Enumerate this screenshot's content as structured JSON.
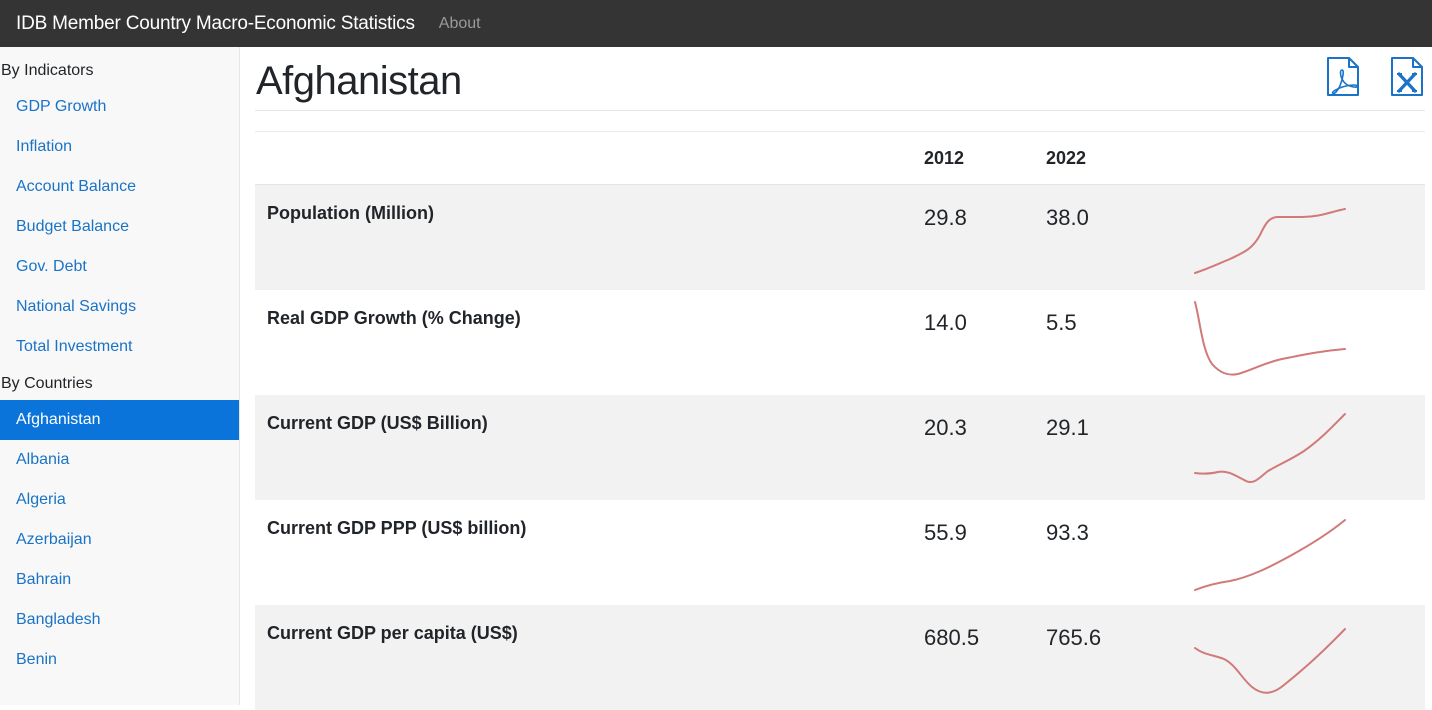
{
  "navbar": {
    "brand": "IDB Member Country Macro-Economic Statistics",
    "about": "About"
  },
  "sidebar": {
    "indicators_heading": "By Indicators",
    "indicators": [
      "GDP Growth",
      "Inflation",
      "Account Balance",
      "Budget Balance",
      "Gov. Debt",
      "National Savings",
      "Total Investment"
    ],
    "countries_heading": "By Countries",
    "countries": [
      "Afghanistan",
      "Albania",
      "Algeria",
      "Azerbaijan",
      "Bahrain",
      "Bangladesh",
      "Benin"
    ],
    "active_country": "Afghanistan"
  },
  "page": {
    "title": "Afghanistan",
    "export_icons": [
      "pdf-file-icon",
      "excel-file-icon"
    ]
  },
  "table": {
    "years": [
      "2012",
      "2022"
    ],
    "rows": [
      {
        "label": "Population (Million)",
        "v2012": "29.8",
        "v2022": "38.0"
      },
      {
        "label": "Real GDP Growth (% Change)",
        "v2012": "14.0",
        "v2022": "5.5"
      },
      {
        "label": "Current GDP (US$ Billion)",
        "v2012": "20.3",
        "v2022": "29.1"
      },
      {
        "label": "Current GDP PPP (US$ billion)",
        "v2012": "55.9",
        "v2022": "93.3"
      },
      {
        "label": "Current GDP per capita (US$)",
        "v2012": "680.5",
        "v2022": "765.6"
      }
    ]
  },
  "colors": {
    "navbar": "#343434",
    "active": "#0a74da",
    "link": "#1a73c7",
    "sparkline": "#d17a78"
  }
}
